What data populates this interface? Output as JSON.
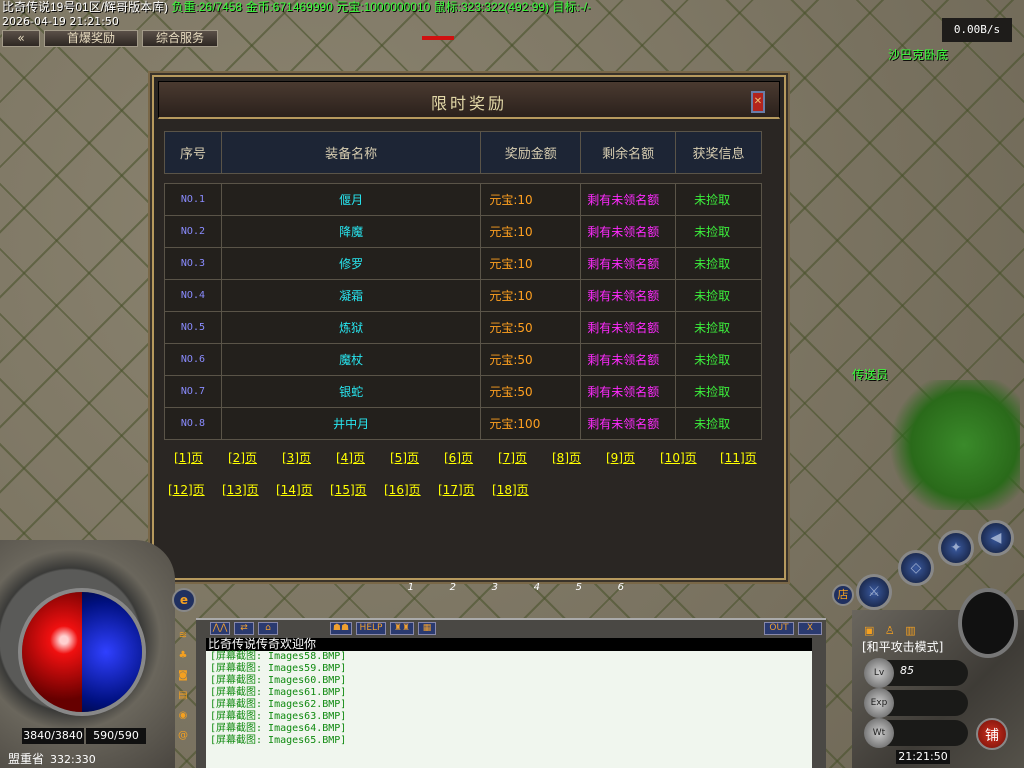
{
  "topbar": {
    "server": "比奇传说19号01区/辉哥版本库)",
    "weight_label": "负重:",
    "weight": "26/7458",
    "gold_label": "金币:",
    "gold": "671469990",
    "yuanbao_label": "元宝:",
    "yuanbao": "1000000010",
    "mouse_label": "鼠标:",
    "mouse": "323:322(492:99)",
    "target_label": "目标:",
    "target": "-/-",
    "datetime": "2026-04-19 21:21:50",
    "buttons": [
      "首爆奖励",
      "综合服务"
    ],
    "net_speed": "0.00B/s"
  },
  "npcs": [
    "沙巴克卧底",
    "传送员"
  ],
  "dialog": {
    "title": "限时奖励",
    "close_icon": "close-icon",
    "headers": [
      "序号",
      "装备名称",
      "奖励金额",
      "剩余名额",
      "获奖信息"
    ],
    "rows": [
      {
        "no": "NO.1",
        "name": "偃月",
        "amount": "元宝:10",
        "remaining": "剩有未领名额",
        "info": "未捡取"
      },
      {
        "no": "NO.2",
        "name": "降魔",
        "amount": "元宝:10",
        "remaining": "剩有未领名额",
        "info": "未捡取"
      },
      {
        "no": "NO.3",
        "name": "修罗",
        "amount": "元宝:10",
        "remaining": "剩有未领名额",
        "info": "未捡取"
      },
      {
        "no": "NO.4",
        "name": "凝霜",
        "amount": "元宝:10",
        "remaining": "剩有未领名额",
        "info": "未捡取"
      },
      {
        "no": "NO.5",
        "name": "炼狱",
        "amount": "元宝:50",
        "remaining": "剩有未领名额",
        "info": "未捡取"
      },
      {
        "no": "NO.6",
        "name": "魔杖",
        "amount": "元宝:50",
        "remaining": "剩有未领名额",
        "info": "未捡取"
      },
      {
        "no": "NO.7",
        "name": "银蛇",
        "amount": "元宝:50",
        "remaining": "剩有未领名额",
        "info": "未捡取"
      },
      {
        "no": "NO.8",
        "name": "井中月",
        "amount": "元宝:100",
        "remaining": "剩有未领名额",
        "info": "未捡取"
      }
    ],
    "pages": [
      "[1]页",
      "[2]页",
      "[3]页",
      "[4]页",
      "[5]页",
      "[6]页",
      "[7]页",
      "[8]页",
      "[9]页",
      "[10]页",
      "[11]页",
      "[12]页",
      "[13]页",
      "[14]页",
      "[15]页",
      "[16]页",
      "[17]页",
      "[18]页"
    ]
  },
  "belt": [
    "1",
    "2",
    "3",
    "4",
    "5",
    "6"
  ],
  "player": {
    "hp": "3840/3840",
    "mp": "590/590",
    "map": "盟重省",
    "coords": "332:330",
    "mode": "[和平攻击模式]",
    "level": "85",
    "clock": "21:21:50"
  },
  "chat": {
    "toolbar": [
      "HELP",
      "OUT",
      "X"
    ],
    "header": "比奇传说传奇欢迎你",
    "lines": [
      "[屏幕截图: Images58.BMP]",
      "[屏幕截图: Images59.BMP]",
      "[屏幕截图: Images60.BMP]",
      "[屏幕截图: Images61.BMP]",
      "[屏幕截图: Images62.BMP]",
      "[屏幕截图: Images63.BMP]",
      "[屏幕截图: Images64.BMP]",
      "[屏幕截图: Images65.BMP]"
    ]
  },
  "hud": {
    "shop_label": "铺",
    "e_label": "e",
    "shop_small": "店",
    "lv_label": "Lv",
    "exp_label": "Exp",
    "wt_label": "Wt"
  },
  "colors": {
    "item_name": "#28e6f0",
    "amount": "#ffa020",
    "remaining": "#ff2aff",
    "info": "#3cf03c",
    "page_link": "#ffff00",
    "stat_green": "#39ff39"
  }
}
